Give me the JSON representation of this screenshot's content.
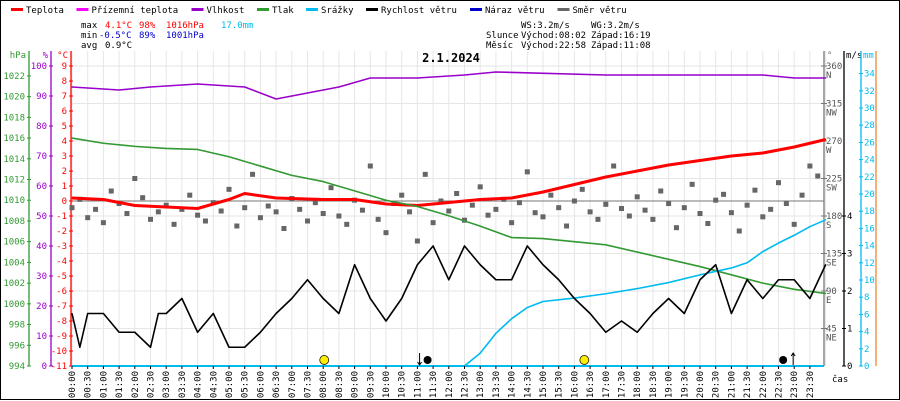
{
  "legend": [
    {
      "label": "Teplota",
      "color": "#ff0000"
    },
    {
      "label": "Přízemní teplota",
      "color": "#ff00ff"
    },
    {
      "label": "Vlhkost",
      "color": "#9900cc"
    },
    {
      "label": "Tlak",
      "color": "#339933"
    },
    {
      "label": "Srážky",
      "color": "#00bbee"
    },
    {
      "label": "Rychlost větru",
      "color": "#000000"
    },
    {
      "label": "Náraz větru",
      "color": "#0000cc"
    },
    {
      "label": "Směr větru",
      "color": "#666666"
    }
  ],
  "stats": {
    "max": {
      "label": "max",
      "temp": "4.1°C",
      "hum": "98%",
      "press": "1016hPa",
      "rain": "17.0mm"
    },
    "min": {
      "label": "min",
      "temp": "-0.5°C",
      "hum": "89%",
      "press": "1001hPa"
    },
    "avg": {
      "label": "avg",
      "temp": "0.9°C"
    },
    "ws": "WS:3.2m/s",
    "wg": "WG:3.2m/s",
    "sun": {
      "label": "Slunce",
      "rise": "Východ:08:02",
      "set": "Západ:16:19"
    },
    "moon": {
      "label": "Měsíc",
      "rise": "Východ:22:58",
      "set": "Západ:11:08"
    }
  },
  "chart_data": {
    "type": "line",
    "title": "2.1.2024",
    "xlabel": "čas",
    "x_ticks": [
      "00:00",
      "00:30",
      "01:00",
      "01:30",
      "02:00",
      "02:30",
      "03:00",
      "03:30",
      "04:00",
      "04:30",
      "05:00",
      "05:30",
      "06:00",
      "06:30",
      "07:00",
      "07:30",
      "08:00",
      "08:30",
      "09:00",
      "09:30",
      "10:00",
      "10:30",
      "11:00",
      "11:30",
      "12:00",
      "12:30",
      "13:00",
      "13:30",
      "14:00",
      "14:30",
      "15:00",
      "15:30",
      "16:00",
      "16:30",
      "17:00",
      "17:30",
      "18:00",
      "18:30",
      "19:00",
      "19:30",
      "20:00",
      "20:30",
      "21:00",
      "21:30",
      "22:00",
      "22:30",
      "23:00",
      "23:30"
    ],
    "axes": {
      "pressure": {
        "unit": "hPa",
        "range": [
          994,
          1022
        ],
        "ticks": [
          994,
          996,
          998,
          1000,
          1002,
          1004,
          1006,
          1008,
          1010,
          1012,
          1014,
          1016,
          1018,
          1020,
          1022
        ]
      },
      "humidity": {
        "unit": "%",
        "range": [
          0,
          100
        ],
        "ticks": [
          0,
          10,
          20,
          30,
          40,
          50,
          60,
          70,
          80,
          90,
          100
        ]
      },
      "temperature": {
        "unit": "°C",
        "range": [
          -11,
          9
        ],
        "ticks": [
          -11,
          -10,
          -9,
          -8,
          -7,
          -6,
          -5,
          -4,
          -3,
          -2,
          -1,
          0,
          1,
          2,
          3,
          4,
          5,
          6,
          7,
          8,
          9
        ]
      },
      "direction": {
        "unit": "°",
        "range": [
          0,
          360
        ],
        "ticks": [
          {
            "v": 45,
            "c": "NE"
          },
          {
            "v": 90,
            "c": "E"
          },
          {
            "v": 135,
            "c": "SE"
          },
          {
            "v": 180,
            "c": "S"
          },
          {
            "v": 225,
            "c": "SW"
          },
          {
            "v": 270,
            "c": "W"
          },
          {
            "v": 315,
            "c": "NW"
          },
          {
            "v": 360,
            "c": "N"
          }
        ]
      },
      "wind": {
        "unit": "m/s",
        "range": [
          0,
          4
        ],
        "ticks": [
          0,
          1,
          2,
          3,
          4
        ]
      },
      "rain": {
        "unit": "mm",
        "range": [
          0,
          35
        ],
        "ticks": [
          0,
          2,
          4,
          6,
          8,
          10,
          12,
          14,
          16,
          18,
          20,
          22,
          24,
          26,
          28,
          30,
          32,
          34
        ]
      }
    },
    "grid": true,
    "legend_placement": "top",
    "series": [
      {
        "name": "Teplota",
        "axis": "temperature",
        "color": "#ff0000",
        "points": [
          [
            "00:00",
            0.2
          ],
          [
            "01:00",
            0.1
          ],
          [
            "02:00",
            -0.3
          ],
          [
            "03:00",
            -0.4
          ],
          [
            "04:00",
            -0.5
          ],
          [
            "05:00",
            0.1
          ],
          [
            "05:30",
            0.5
          ],
          [
            "06:30",
            0.2
          ],
          [
            "08:00",
            0.1
          ],
          [
            "09:00",
            0.1
          ],
          [
            "10:00",
            -0.2
          ],
          [
            "11:00",
            -0.3
          ],
          [
            "12:00",
            -0.1
          ],
          [
            "13:00",
            0.1
          ],
          [
            "14:00",
            0.2
          ],
          [
            "15:00",
            0.6
          ],
          [
            "16:00",
            1.1
          ],
          [
            "17:00",
            1.6
          ],
          [
            "18:00",
            2.0
          ],
          [
            "19:00",
            2.4
          ],
          [
            "20:00",
            2.7
          ],
          [
            "21:00",
            3.0
          ],
          [
            "22:00",
            3.2
          ],
          [
            "23:00",
            3.6
          ],
          [
            "24:00",
            4.1
          ]
        ]
      },
      {
        "name": "Vlhkost",
        "axis": "humidity",
        "color": "#9900cc",
        "points": [
          [
            "00:00",
            93
          ],
          [
            "01:30",
            92
          ],
          [
            "02:30",
            93
          ],
          [
            "04:00",
            94
          ],
          [
            "05:30",
            93
          ],
          [
            "06:30",
            89
          ],
          [
            "07:30",
            91
          ],
          [
            "08:30",
            93
          ],
          [
            "09:30",
            96
          ],
          [
            "11:00",
            96
          ],
          [
            "12:30",
            97
          ],
          [
            "13:30",
            98
          ],
          [
            "17:00",
            97
          ],
          [
            "18:00",
            97
          ],
          [
            "20:00",
            97
          ],
          [
            "22:00",
            97
          ],
          [
            "23:00",
            96
          ],
          [
            "24:00",
            96
          ]
        ]
      },
      {
        "name": "Tlak",
        "axis": "pressure",
        "color": "#339933",
        "points": [
          [
            "00:00",
            1016
          ],
          [
            "01:00",
            1015.5
          ],
          [
            "02:00",
            1015.2
          ],
          [
            "03:00",
            1015.0
          ],
          [
            "04:00",
            1014.9
          ],
          [
            "05:00",
            1014.2
          ],
          [
            "06:00",
            1013.3
          ],
          [
            "07:00",
            1012.4
          ],
          [
            "08:00",
            1011.8
          ],
          [
            "09:00",
            1010.9
          ],
          [
            "10:00",
            1010.0
          ],
          [
            "11:00",
            1009.4
          ],
          [
            "12:00",
            1008.5
          ],
          [
            "13:00",
            1007.5
          ],
          [
            "14:00",
            1006.4
          ],
          [
            "15:00",
            1006.3
          ],
          [
            "16:00",
            1006.0
          ],
          [
            "17:00",
            1005.7
          ],
          [
            "18:00",
            1005.0
          ],
          [
            "19:00",
            1004.3
          ],
          [
            "20:00",
            1003.6
          ],
          [
            "21:00",
            1002.8
          ],
          [
            "22:00",
            1002.0
          ],
          [
            "23:00",
            1001.4
          ],
          [
            "24:00",
            1001.0
          ]
        ]
      },
      {
        "name": "Srážky",
        "axis": "rain",
        "color": "#00bbee",
        "points": [
          [
            "00:00",
            0
          ],
          [
            "12:30",
            0
          ],
          [
            "13:00",
            1.5
          ],
          [
            "13:30",
            3.8
          ],
          [
            "14:00",
            5.5
          ],
          [
            "14:30",
            6.8
          ],
          [
            "15:00",
            7.5
          ],
          [
            "16:00",
            7.9
          ],
          [
            "17:00",
            8.4
          ],
          [
            "18:00",
            9.0
          ],
          [
            "19:00",
            9.7
          ],
          [
            "20:00",
            10.6
          ],
          [
            "21:00",
            11.4
          ],
          [
            "21:30",
            12.0
          ],
          [
            "22:00",
            13.3
          ],
          [
            "22:30",
            14.3
          ],
          [
            "23:00",
            15.2
          ],
          [
            "23:30",
            16.2
          ],
          [
            "24:00",
            17.0
          ]
        ]
      },
      {
        "name": "Rychlost větru",
        "axis": "wind",
        "color": "#000000",
        "points": [
          [
            "00:00",
            1.4
          ],
          [
            "00:15",
            0.5
          ],
          [
            "00:30",
            1.4
          ],
          [
            "01:00",
            1.4
          ],
          [
            "01:30",
            0.9
          ],
          [
            "02:00",
            0.9
          ],
          [
            "02:30",
            0.5
          ],
          [
            "02:45",
            1.4
          ],
          [
            "03:00",
            1.4
          ],
          [
            "03:30",
            1.8
          ],
          [
            "04:00",
            0.9
          ],
          [
            "04:30",
            1.4
          ],
          [
            "05:00",
            0.5
          ],
          [
            "05:30",
            0.5
          ],
          [
            "06:00",
            0.9
          ],
          [
            "06:30",
            1.4
          ],
          [
            "07:00",
            1.8
          ],
          [
            "07:30",
            2.3
          ],
          [
            "08:00",
            1.8
          ],
          [
            "08:30",
            1.4
          ],
          [
            "09:00",
            2.7
          ],
          [
            "09:30",
            1.8
          ],
          [
            "10:00",
            1.2
          ],
          [
            "10:30",
            1.8
          ],
          [
            "11:00",
            2.7
          ],
          [
            "11:30",
            3.2
          ],
          [
            "12:00",
            2.3
          ],
          [
            "12:30",
            3.2
          ],
          [
            "13:00",
            2.7
          ],
          [
            "13:30",
            2.3
          ],
          [
            "14:00",
            2.3
          ],
          [
            "14:30",
            3.2
          ],
          [
            "15:00",
            2.7
          ],
          [
            "15:30",
            2.3
          ],
          [
            "16:00",
            1.8
          ],
          [
            "16:30",
            1.4
          ],
          [
            "17:00",
            0.9
          ],
          [
            "17:30",
            1.2
          ],
          [
            "18:00",
            0.9
          ],
          [
            "18:30",
            1.4
          ],
          [
            "19:00",
            1.8
          ],
          [
            "19:30",
            1.4
          ],
          [
            "20:00",
            2.3
          ],
          [
            "20:30",
            2.7
          ],
          [
            "21:00",
            1.4
          ],
          [
            "21:30",
            2.3
          ],
          [
            "22:00",
            1.8
          ],
          [
            "22:30",
            2.3
          ],
          [
            "23:00",
            2.3
          ],
          [
            "23:30",
            1.8
          ],
          [
            "24:00",
            2.7
          ]
        ]
      }
    ],
    "direction_scatter": {
      "name": "Směr větru",
      "axis": "direction",
      "color": "#666666",
      "points": [
        [
          "00:00",
          190
        ],
        [
          "00:15",
          200
        ],
        [
          "00:30",
          178
        ],
        [
          "00:45",
          188
        ],
        [
          "01:00",
          172
        ],
        [
          "01:15",
          210
        ],
        [
          "01:30",
          195
        ],
        [
          "01:45",
          183
        ],
        [
          "02:00",
          225
        ],
        [
          "02:15",
          202
        ],
        [
          "02:30",
          176
        ],
        [
          "02:45",
          185
        ],
        [
          "03:00",
          193
        ],
        [
          "03:15",
          170
        ],
        [
          "03:30",
          188
        ],
        [
          "03:45",
          205
        ],
        [
          "04:00",
          181
        ],
        [
          "04:15",
          174
        ],
        [
          "04:30",
          196
        ],
        [
          "04:45",
          186
        ],
        [
          "05:00",
          212
        ],
        [
          "05:15",
          168
        ],
        [
          "05:30",
          190
        ],
        [
          "05:45",
          230
        ],
        [
          "06:00",
          178
        ],
        [
          "06:15",
          192
        ],
        [
          "06:30",
          185
        ],
        [
          "06:45",
          165
        ],
        [
          "07:00",
          201
        ],
        [
          "07:15",
          188
        ],
        [
          "07:30",
          174
        ],
        [
          "07:45",
          196
        ],
        [
          "08:00",
          183
        ],
        [
          "08:15",
          214
        ],
        [
          "08:30",
          180
        ],
        [
          "08:45",
          170
        ],
        [
          "09:00",
          199
        ],
        [
          "09:15",
          187
        ],
        [
          "09:30",
          240
        ],
        [
          "09:45",
          176
        ],
        [
          "10:00",
          160
        ],
        [
          "10:15",
          195
        ],
        [
          "10:30",
          205
        ],
        [
          "10:45",
          185
        ],
        [
          "11:00",
          150
        ],
        [
          "11:15",
          230
        ],
        [
          "11:30",
          172
        ],
        [
          "11:45",
          198
        ],
        [
          "12:00",
          186
        ],
        [
          "12:15",
          207
        ],
        [
          "12:30",
          175
        ],
        [
          "12:45",
          193
        ],
        [
          "13:00",
          215
        ],
        [
          "13:15",
          181
        ],
        [
          "13:30",
          188
        ],
        [
          "13:45",
          200
        ],
        [
          "14:00",
          172
        ],
        [
          "14:15",
          196
        ],
        [
          "14:30",
          233
        ],
        [
          "14:45",
          184
        ],
        [
          "15:00",
          179
        ],
        [
          "15:15",
          205
        ],
        [
          "15:30",
          190
        ],
        [
          "15:45",
          168
        ],
        [
          "16:00",
          198
        ],
        [
          "16:15",
          212
        ],
        [
          "16:30",
          185
        ],
        [
          "16:45",
          176
        ],
        [
          "17:00",
          194
        ],
        [
          "17:15",
          240
        ],
        [
          "17:30",
          189
        ],
        [
          "17:45",
          180
        ],
        [
          "18:00",
          203
        ],
        [
          "18:15",
          187
        ],
        [
          "18:30",
          176
        ],
        [
          "18:45",
          210
        ],
        [
          "19:00",
          195
        ],
        [
          "19:15",
          166
        ],
        [
          "19:30",
          190
        ],
        [
          "19:45",
          218
        ],
        [
          "20:00",
          183
        ],
        [
          "20:15",
          171
        ],
        [
          "20:30",
          199
        ],
        [
          "20:45",
          206
        ],
        [
          "21:00",
          184
        ],
        [
          "21:15",
          162
        ],
        [
          "21:30",
          193
        ],
        [
          "21:45",
          211
        ],
        [
          "22:00",
          179
        ],
        [
          "22:15",
          188
        ],
        [
          "22:30",
          220
        ],
        [
          "22:45",
          195
        ],
        [
          "23:00",
          170
        ],
        [
          "23:15",
          205
        ],
        [
          "23:30",
          240
        ],
        [
          "23:45",
          228
        ]
      ]
    },
    "events": [
      {
        "type": "sunrise",
        "time": "08:02",
        "color": "#ffee00"
      },
      {
        "type": "moonset",
        "time": "11:08",
        "color": "#000000"
      },
      {
        "type": "sunset",
        "time": "16:19",
        "color": "#ffee00"
      },
      {
        "type": "moonrise",
        "time": "22:58",
        "color": "#000000"
      }
    ]
  }
}
